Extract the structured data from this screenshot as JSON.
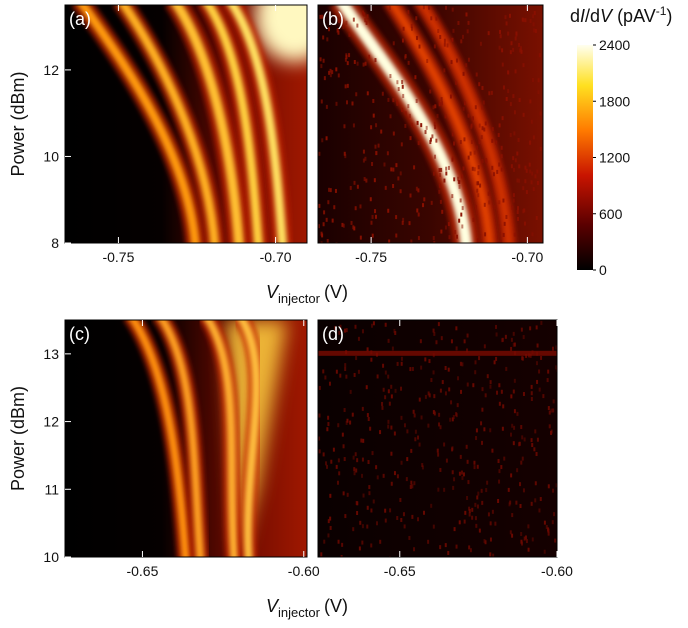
{
  "chart_data": [
    {
      "type": "heatmap",
      "panel_label": "(a)",
      "xlim": [
        -0.767,
        -0.69
      ],
      "xticks": [
        -0.75,
        {
          "value": -0.7,
          "label": "-0.70"
        }
      ],
      "ylim": [
        8,
        13.5
      ],
      "yticks": [
        8,
        10,
        12
      ],
      "y_label": "Power (dBm)",
      "x_label": {
        "symbol": "V",
        "subscript": "injector",
        "unit": "(V)"
      }
    },
    {
      "type": "heatmap",
      "panel_label": "(b)",
      "xlim": [
        -0.767,
        -0.695
      ],
      "xticks": [
        -0.75,
        {
          "value": -0.7,
          "label": "-0.70"
        }
      ],
      "ylim": [
        8,
        13.5
      ],
      "colorbar": {
        "label_parts": [
          {
            "text": "d"
          },
          {
            "text": "I",
            "italic": true
          },
          {
            "text": "/d"
          },
          {
            "text": "V",
            "italic": true
          },
          {
            "text": " (pAV"
          },
          {
            "text": "-1",
            "superscript": true
          },
          {
            "text": ")"
          }
        ],
        "lim": [
          0,
          2400
        ],
        "ticks": [
          0,
          600,
          1200,
          1800,
          2400
        ]
      }
    },
    {
      "type": "heatmap",
      "panel_label": "(c)",
      "xlim": [
        -0.674,
        -0.599
      ],
      "xticks": [
        -0.65,
        {
          "value": -0.6,
          "label": "-0.60"
        }
      ],
      "ylim": [
        10,
        13.5
      ],
      "yticks": [
        10,
        11,
        12,
        13
      ],
      "y_label": "Power (dBm)",
      "x_label": {
        "symbol": "V",
        "subscript": "injector",
        "unit": "(V)"
      }
    },
    {
      "type": "heatmap",
      "panel_label": "(d)",
      "xlim": [
        -0.676,
        -0.6
      ],
      "xticks": [
        -0.65,
        {
          "value": -0.6,
          "label": "-0.60"
        }
      ],
      "ylim": [
        10,
        13.5
      ]
    }
  ]
}
